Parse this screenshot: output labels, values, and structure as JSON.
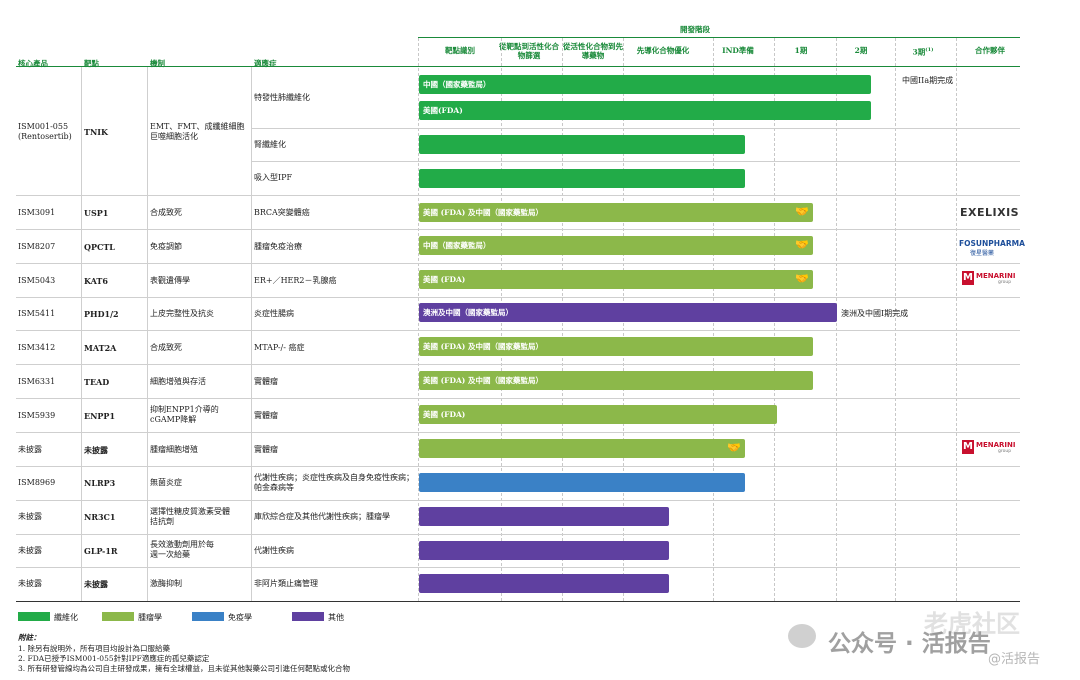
{
  "header": {
    "stage_group": "開發階段",
    "cols": {
      "product": "核心產品",
      "target": "靶點",
      "mechanism": "機制",
      "indication": "適應症",
      "s1": "靶點識別",
      "s2": "從靶點到活性化合物篩選",
      "s3": "從活性化合物到先導藥物",
      "s4": "先導化合物優化",
      "s5": "IND準備",
      "s6": "1期",
      "s7": "2期",
      "s8": "3期",
      "s8_sup": "(1)",
      "partner": "合作夥伴"
    }
  },
  "colors": {
    "fibrosis": "#22ab48",
    "oncology": "#8cb84a",
    "immunology": "#3a81c6",
    "other": "#5f40a0"
  },
  "rows": [
    {
      "product": "ISM001-055",
      "product2": "(Rentosertib)",
      "target": "TNIK",
      "mechanism": "EMT、FMT、成纖維細胞巨噬細胞活化"
    },
    {
      "product": "ISM3091",
      "target": "USP1",
      "mechanism": "合成致死",
      "indication": "BRCA突變體癌"
    },
    {
      "product": "ISM8207",
      "target": "QPCTL",
      "mechanism": "免疫調節",
      "indication": "腫瘤免疫治療"
    },
    {
      "product": "ISM5043",
      "target": "KAT6",
      "mechanism": "表觀遺傳學",
      "indication": "ER+／HER2－乳腺癌"
    },
    {
      "product": "ISM5411",
      "target": "PHD1/2",
      "mechanism": "上皮完整性及抗炎",
      "indication": "炎症性腸病"
    },
    {
      "product": "ISM3412",
      "target": "MAT2A",
      "mechanism": "合成致死",
      "indication": "MTAP-/- 癌症"
    },
    {
      "product": "ISM6331",
      "target": "TEAD",
      "mechanism": "細胞增殖與存活",
      "indication": "實體瘤"
    },
    {
      "product": "ISM5939",
      "target": "ENPP1",
      "mechanism": "抑制ENPP1介導的cGAMP降解",
      "indication": "實體瘤"
    },
    {
      "product": "未披露",
      "target": "未披露",
      "mechanism": "腫瘤細胞增殖",
      "indication": "實體瘤"
    },
    {
      "product": "ISM8969",
      "target": "NLRP3",
      "mechanism": "無菌炎症",
      "indication": "代謝性疾病；炎症性疾病及自身免疫性疾病；帕金森病等"
    },
    {
      "product": "未披露",
      "target": "NR3C1",
      "mechanism": "選擇性糖皮質激素受體拮抗劑",
      "indication": "庫欣綜合症及其他代謝性疾病；腫瘤學"
    },
    {
      "product": "未披露",
      "target": "GLP-1R",
      "mechanism": "長效激動劑用於每週一次給藥",
      "indication": "代謝性疾病"
    },
    {
      "product": "未披露",
      "target": "未披露",
      "mechanism": "激酶抑制",
      "indication": "非阿片類止痛管理"
    }
  ],
  "tnik_indications": [
    "特發性肺纖維化",
    "腎纖維化",
    "吸入型IPF"
  ],
  "bars": {
    "b1": "中國（國家藥監局）",
    "b2": "美國(FDA)",
    "b4": "美國 (FDA) 及中國（國家藥監局）",
    "b5": "中國（國家藥監局）",
    "b6": "美國 (FDA)",
    "b7": "澳洲及中國（國家藥監局）",
    "b8": "美國 (FDA) 及中國（國家藥監局）",
    "b9": "美國 (FDA) 及中國（國家藥監局）",
    "b10": "美國 (FDA)"
  },
  "bar_notes": {
    "n1": "中國IIa期完成",
    "n2": "澳洲及中國I期完成"
  },
  "handshake_icon": "handshake-icon",
  "partners": {
    "exelixis": "EXELIXIS",
    "fosun": "FOSUNPHARMA",
    "fosun_sub": "復星醫藥",
    "menarini": "MENARINI",
    "menarini_sub": "group"
  },
  "legend": {
    "fibrosis": "纖維化",
    "oncology": "腫瘤學",
    "immunology": "免疫學",
    "other": "其他"
  },
  "notes": {
    "title": "附註：",
    "n1": "1.  除另有說明外，所有項目均設計為口服給藥",
    "n2": "2.  FDA已授予ISM001-055針對IPF適應症的孤兒藥認定",
    "n3": "3.  所有研發管線均為公司自主研發成果，擁有全球權益，且未從其他製藥公司引進任何靶點或化合物"
  },
  "watermark": {
    "line1": "老虎社区",
    "wechat": "公众号 · 活报告",
    "handle": "@活报告"
  }
}
